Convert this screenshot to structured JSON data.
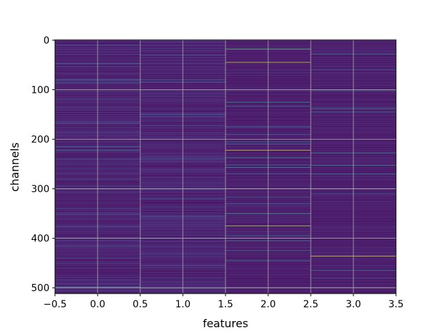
{
  "chart_data": {
    "type": "heatmap",
    "title": "",
    "xlabel": "features",
    "ylabel": "channels",
    "xlim": [
      -0.5,
      3.5
    ],
    "ylim": [
      511.5,
      -0.5
    ],
    "y_inverted": true,
    "grid": true,
    "colormap": "viridis",
    "n_rows": 512,
    "n_cols": 4,
    "x_ticks": [
      "−0.5",
      "0.0",
      "0.5",
      "1.0",
      "1.5",
      "2.0",
      "2.5",
      "3.0",
      "3.5"
    ],
    "x_tick_values": [
      -0.5,
      0.0,
      0.5,
      1.0,
      1.5,
      2.0,
      2.5,
      3.0,
      3.5
    ],
    "y_ticks": [
      "0",
      "100",
      "200",
      "300",
      "400",
      "500"
    ],
    "y_tick_values": [
      0,
      100,
      200,
      300,
      400,
      500
    ],
    "background_value": 0.05,
    "columns": [
      {
        "feature": 0,
        "texture": 0.12,
        "highlights": [
          [
            10,
            0.3
          ],
          [
            48,
            0.25
          ],
          [
            80,
            0.35
          ],
          [
            86,
            0.3
          ],
          [
            120,
            0.25
          ],
          [
            215,
            0.4
          ],
          [
            222,
            0.45
          ],
          [
            240,
            0.25
          ],
          [
            300,
            0.3
          ],
          [
            340,
            0.25
          ],
          [
            400,
            0.4
          ],
          [
            440,
            0.25
          ],
          [
            498,
            0.3
          ]
        ]
      },
      {
        "feature": 1,
        "texture": 0.12,
        "highlights": [
          [
            30,
            0.25
          ],
          [
            80,
            0.35
          ],
          [
            85,
            0.3
          ],
          [
            150,
            0.25
          ],
          [
            240,
            0.3
          ],
          [
            300,
            0.3
          ],
          [
            320,
            0.35
          ],
          [
            360,
            0.25
          ],
          [
            400,
            0.3
          ],
          [
            430,
            0.25
          ],
          [
            480,
            0.25
          ]
        ]
      },
      {
        "feature": 2,
        "texture": 0.05,
        "highlights": [
          [
            18,
            0.75
          ],
          [
            45,
            0.9
          ],
          [
            125,
            0.55
          ],
          [
            133,
            0.45
          ],
          [
            175,
            0.35
          ],
          [
            190,
            0.3
          ],
          [
            205,
            0.4
          ],
          [
            210,
            0.45
          ],
          [
            222,
            0.95
          ],
          [
            237,
            0.55
          ],
          [
            252,
            0.4
          ],
          [
            257,
            0.5
          ],
          [
            270,
            0.35
          ],
          [
            300,
            0.45
          ],
          [
            317,
            0.35
          ],
          [
            330,
            0.35
          ],
          [
            350,
            0.55
          ],
          [
            375,
            0.85
          ],
          [
            395,
            0.45
          ],
          [
            405,
            0.5
          ],
          [
            425,
            0.4
          ],
          [
            445,
            0.5
          ],
          [
            500,
            0.4
          ]
        ]
      },
      {
        "feature": 3,
        "texture": 0.05,
        "highlights": [
          [
            28,
            0.45
          ],
          [
            60,
            0.3
          ],
          [
            102,
            0.35
          ],
          [
            138,
            0.5
          ],
          [
            145,
            0.45
          ],
          [
            228,
            0.5
          ],
          [
            253,
            0.55
          ],
          [
            270,
            0.45
          ],
          [
            300,
            0.35
          ],
          [
            310,
            0.3
          ],
          [
            436,
            0.95
          ],
          [
            465,
            0.4
          ],
          [
            480,
            0.3
          ],
          [
            500,
            0.35
          ]
        ]
      }
    ]
  }
}
